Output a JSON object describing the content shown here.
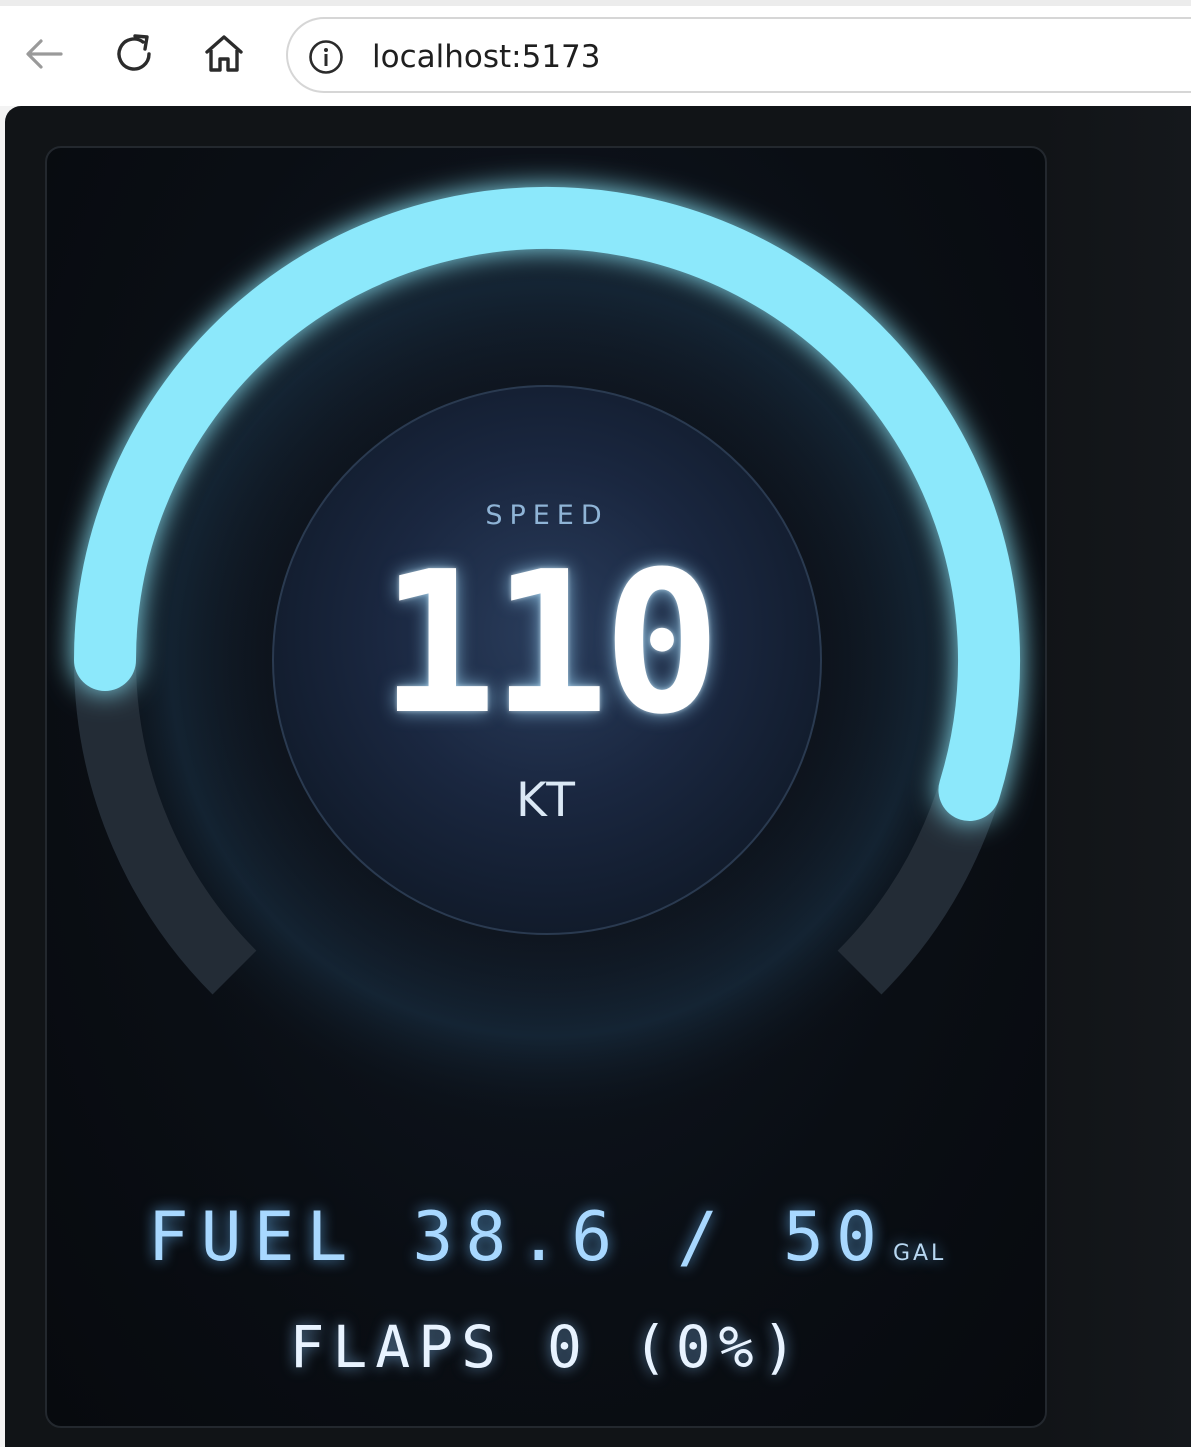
{
  "browser": {
    "url": "localhost:5173"
  },
  "gauge": {
    "label": "SPEED",
    "value": "110",
    "unit": "KT",
    "fill_fraction": 0.73,
    "arc_color": "#8ce8fb",
    "track_color": "#232c36"
  },
  "fuel": {
    "label": "FUEL",
    "current": "38.6",
    "separator": "/",
    "capacity": "50",
    "unit": "GAL"
  },
  "flaps": {
    "label": "FLAPS",
    "setting": "0",
    "percent": "(0%)"
  }
}
